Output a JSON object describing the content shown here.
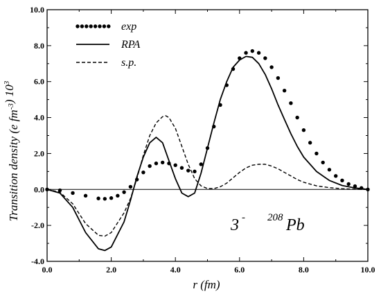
{
  "chart_data": {
    "type": "line",
    "xlabel": "r (fm)",
    "ylabel": "Transition density (e fm-3) 103",
    "xlim": [
      0,
      10
    ],
    "ylim": [
      -4,
      10
    ],
    "x_ticks": [
      "0.0",
      "2.0",
      "4.0",
      "6.0",
      "8.0",
      "10.0"
    ],
    "y_ticks": [
      "-4.0",
      "-2.0",
      "0.0",
      "2.0",
      "4.0",
      "6.0",
      "8.0",
      "10.0"
    ],
    "grid": false,
    "legend_position": "top-left",
    "annotation": {
      "multipolarity": "3",
      "multipolarity_sup": "-",
      "nucleus_mass": "208",
      "nucleus": "Pb"
    },
    "series": [
      {
        "name": "exp",
        "style": "dotted",
        "x": [
          0.0,
          0.4,
          0.8,
          1.2,
          1.6,
          1.8,
          2.0,
          2.2,
          2.4,
          2.6,
          2.8,
          3.0,
          3.2,
          3.4,
          3.6,
          3.8,
          4.0,
          4.2,
          4.4,
          4.6,
          4.8,
          5.0,
          5.2,
          5.4,
          5.6,
          5.8,
          6.0,
          6.2,
          6.4,
          6.6,
          6.8,
          7.0,
          7.2,
          7.4,
          7.6,
          7.8,
          8.0,
          8.2,
          8.4,
          8.6,
          8.8,
          9.0,
          9.2,
          9.4,
          9.6,
          9.8,
          10.0
        ],
        "y": [
          0.0,
          -0.05,
          -0.2,
          -0.35,
          -0.5,
          -0.52,
          -0.48,
          -0.35,
          -0.15,
          0.15,
          0.55,
          0.95,
          1.3,
          1.45,
          1.5,
          1.45,
          1.35,
          1.2,
          1.05,
          1.0,
          1.4,
          2.3,
          3.5,
          4.7,
          5.8,
          6.7,
          7.3,
          7.6,
          7.7,
          7.6,
          7.3,
          6.8,
          6.2,
          5.5,
          4.8,
          4.0,
          3.3,
          2.6,
          2.0,
          1.5,
          1.1,
          0.75,
          0.5,
          0.3,
          0.18,
          0.08,
          0.0
        ]
      },
      {
        "name": "RPA",
        "style": "solid",
        "x": [
          0.0,
          0.4,
          0.8,
          1.2,
          1.6,
          1.8,
          2.0,
          2.4,
          2.6,
          2.8,
          3.0,
          3.2,
          3.4,
          3.6,
          3.8,
          4.0,
          4.2,
          4.4,
          4.6,
          4.8,
          5.0,
          5.2,
          5.4,
          5.6,
          5.8,
          6.0,
          6.2,
          6.4,
          6.6,
          6.8,
          7.0,
          7.2,
          7.4,
          7.6,
          7.8,
          8.0,
          8.4,
          8.8,
          9.2,
          9.6,
          10.0
        ],
        "y": [
          0.0,
          -0.2,
          -1.0,
          -2.4,
          -3.3,
          -3.4,
          -3.2,
          -1.8,
          -0.6,
          0.7,
          1.8,
          2.6,
          2.9,
          2.6,
          1.6,
          0.6,
          -0.2,
          -0.4,
          -0.2,
          0.9,
          2.3,
          3.7,
          5.0,
          6.0,
          6.8,
          7.2,
          7.4,
          7.35,
          7.0,
          6.4,
          5.6,
          4.7,
          3.9,
          3.1,
          2.4,
          1.8,
          1.0,
          0.5,
          0.22,
          0.08,
          0.0
        ]
      },
      {
        "name": "s.p.",
        "style": "dashed",
        "x": [
          0.0,
          0.4,
          0.8,
          1.2,
          1.6,
          1.8,
          2.0,
          2.4,
          2.6,
          2.8,
          3.0,
          3.2,
          3.4,
          3.6,
          3.7,
          3.8,
          4.0,
          4.2,
          4.4,
          4.6,
          4.8,
          5.0,
          5.2,
          5.4,
          5.6,
          5.8,
          6.0,
          6.2,
          6.4,
          6.6,
          6.8,
          7.0,
          7.2,
          7.4,
          7.6,
          7.8,
          8.0,
          8.4,
          8.8,
          9.2,
          9.6,
          10.0
        ],
        "y": [
          0.0,
          -0.15,
          -0.8,
          -1.9,
          -2.55,
          -2.6,
          -2.4,
          -1.3,
          -0.5,
          0.6,
          1.9,
          3.0,
          3.7,
          4.05,
          4.1,
          4.0,
          3.4,
          2.4,
          1.4,
          0.6,
          0.2,
          0.05,
          0.05,
          0.15,
          0.35,
          0.65,
          0.95,
          1.2,
          1.35,
          1.4,
          1.4,
          1.3,
          1.15,
          0.95,
          0.75,
          0.55,
          0.4,
          0.2,
          0.1,
          0.04,
          0.01,
          0.0
        ]
      }
    ]
  }
}
